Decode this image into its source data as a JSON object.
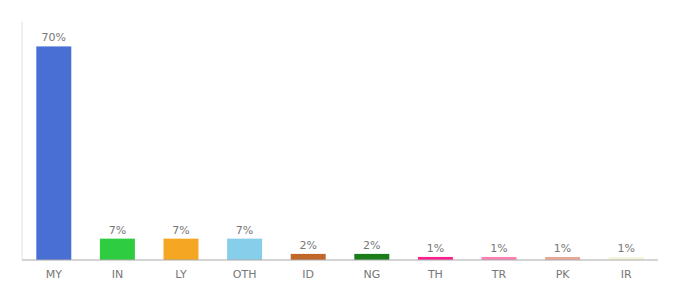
{
  "chart_data": {
    "type": "bar",
    "categories": [
      "MY",
      "IN",
      "LY",
      "OTH",
      "ID",
      "NG",
      "TH",
      "TR",
      "PK",
      "IR"
    ],
    "values": [
      70,
      7,
      7,
      7,
      2,
      2,
      1,
      1,
      1,
      1
    ],
    "value_labels": [
      "70%",
      "7%",
      "7%",
      "7%",
      "2%",
      "2%",
      "1%",
      "1%",
      "1%",
      "1%"
    ],
    "colors": [
      "#4a6fd4",
      "#2ecc40",
      "#f5a623",
      "#87ceeb",
      "#c0672a",
      "#1a7d1a",
      "#ff1f8e",
      "#ff7eb3",
      "#e8a898",
      "#f5f5dc"
    ],
    "ylim": [
      0,
      78
    ],
    "data_labels": true,
    "tick_labels": "x"
  }
}
